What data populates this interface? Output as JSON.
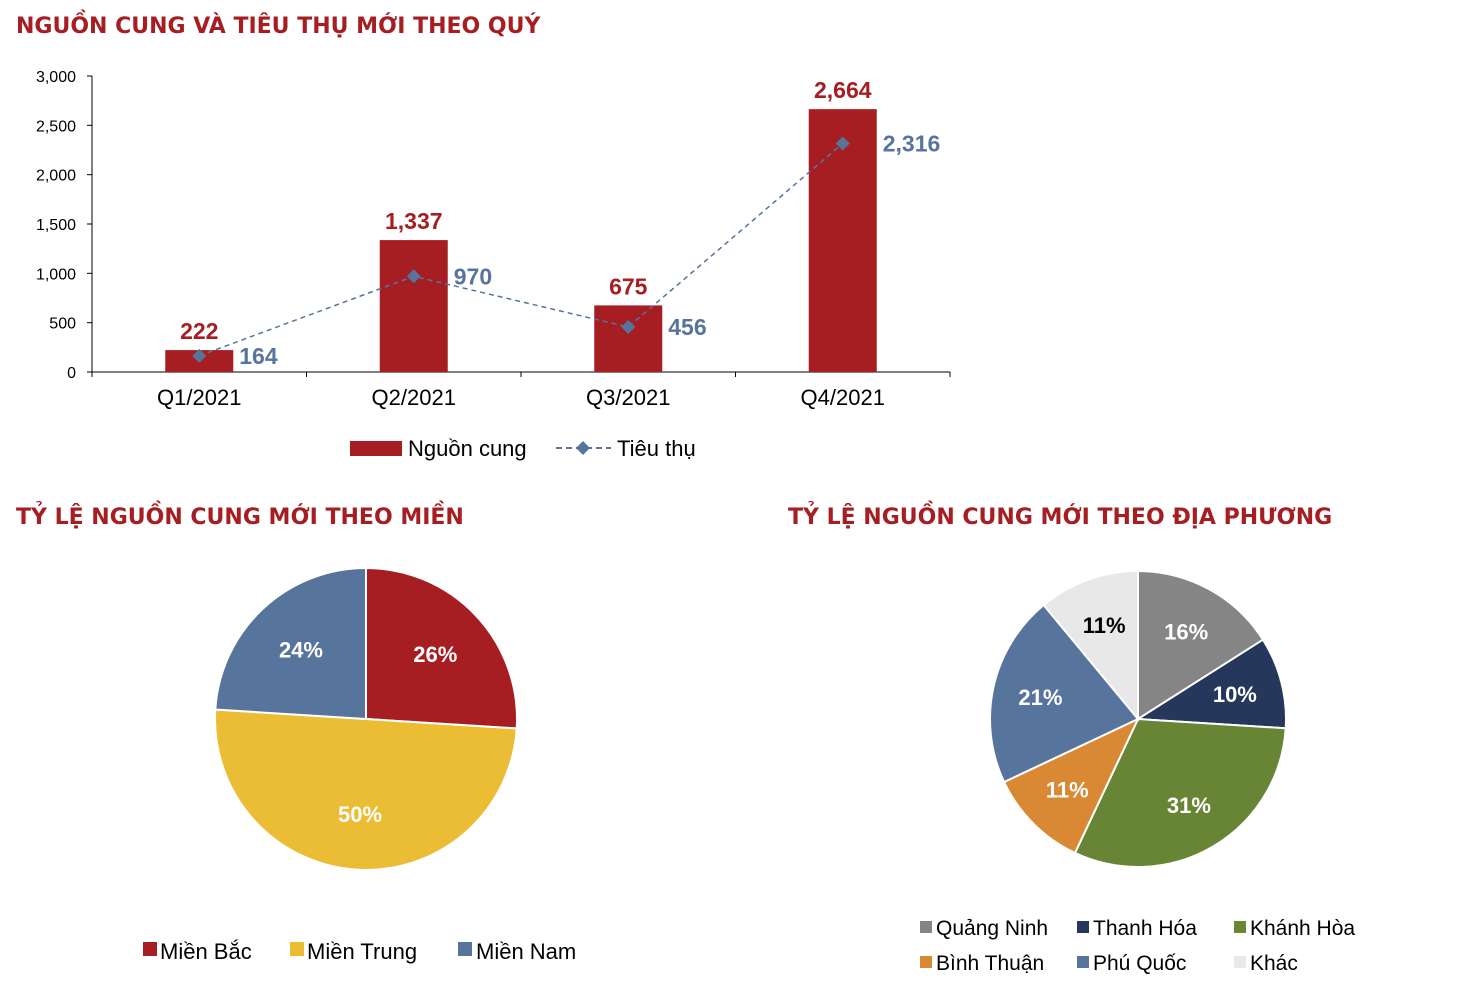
{
  "colors": {
    "title": "#a61e22",
    "bar": "#a61e22",
    "line": "#57749c"
  },
  "chart_data": [
    {
      "type": "bar",
      "title": "NGUỒN CUNG VÀ TIÊU THỤ MỚI THEO QUÝ",
      "categories": [
        "Q1/2021",
        "Q2/2021",
        "Q3/2021",
        "Q4/2021"
      ],
      "ylim": [
        0,
        3000
      ],
      "yticks": [
        0,
        500,
        1000,
        1500,
        2000,
        2500,
        3000
      ],
      "ytick_labels": [
        "0",
        "500",
        "1,000",
        "1,500",
        "2,000",
        "2,500",
        "3,000"
      ],
      "legend_position": "bottom",
      "series": [
        {
          "name": "Nguồn cung",
          "kind": "bar",
          "color": "#a61e22",
          "values": [
            222,
            1337,
            675,
            2664
          ],
          "value_labels": [
            "222",
            "1,337",
            "675",
            "2,664"
          ]
        },
        {
          "name": "Tiêu thụ",
          "kind": "line",
          "style": "dashed",
          "marker": "diamond",
          "color": "#57749c",
          "values": [
            164,
            970,
            456,
            2316
          ],
          "value_labels": [
            "164",
            "970",
            "456",
            "2,316"
          ]
        }
      ]
    },
    {
      "type": "pie",
      "title": "TỶ LỆ NGUỒN CUNG MỚI THEO MIỀN",
      "legend_position": "bottom",
      "slices": [
        {
          "name": "Miền Bắc",
          "value": 26,
          "label": "26%",
          "color": "#a61e22",
          "label_color": "#ffffff"
        },
        {
          "name": "Miền Trung",
          "value": 50,
          "label": "50%",
          "color": "#ebbd35",
          "label_color": "#ffffff"
        },
        {
          "name": "Miền Nam",
          "value": 24,
          "label": "24%",
          "color": "#57749c",
          "label_color": "#ffffff"
        }
      ]
    },
    {
      "type": "pie",
      "title": "TỶ LỆ NGUỒN CUNG MỚI THEO ĐỊA PHƯƠNG",
      "legend_position": "bottom",
      "slices": [
        {
          "name": "Quảng Ninh",
          "value": 16,
          "label": "16%",
          "color": "#858585",
          "label_color": "#ffffff"
        },
        {
          "name": "Thanh Hóa",
          "value": 10,
          "label": "10%",
          "color": "#26375c",
          "label_color": "#ffffff"
        },
        {
          "name": "Khánh Hòa",
          "value": 31,
          "label": "31%",
          "color": "#688536",
          "label_color": "#ffffff"
        },
        {
          "name": "Bình Thuận",
          "value": 11,
          "label": "11%",
          "color": "#d98833",
          "label_color": "#ffffff"
        },
        {
          "name": "Phú Quốc",
          "value": 21,
          "label": "21%",
          "color": "#57749c",
          "label_color": "#ffffff"
        },
        {
          "name": "Khác",
          "value": 11,
          "label": "11%",
          "color": "#e8e8e8",
          "label_color": "#000000"
        }
      ]
    }
  ]
}
